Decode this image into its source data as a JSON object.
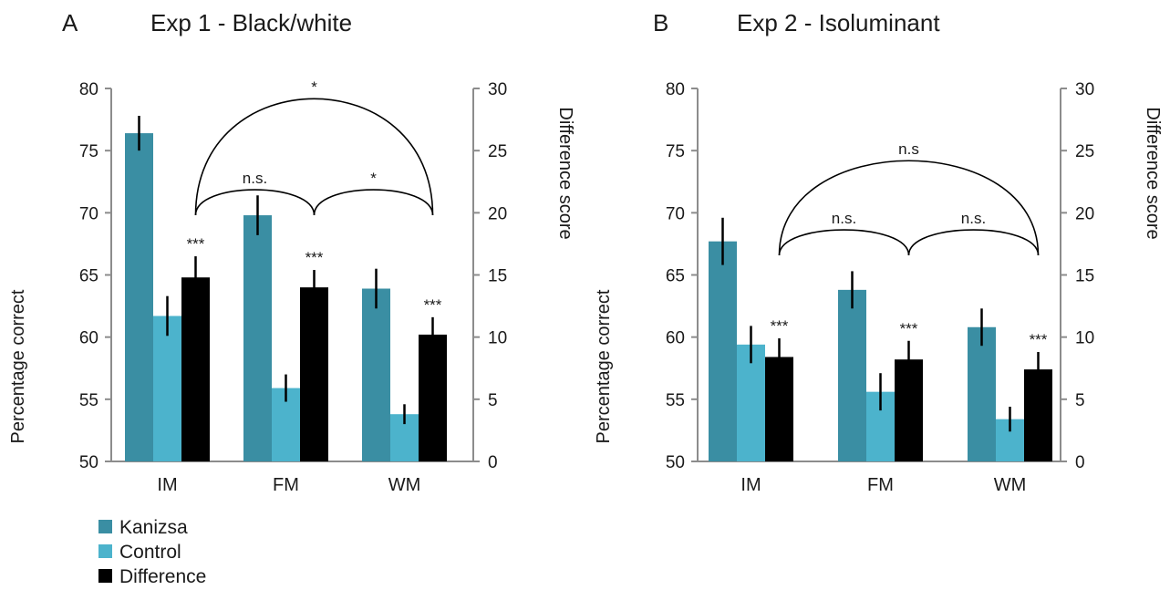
{
  "legend": [
    {
      "label": "Kanizsa",
      "color": "#3a8ea3"
    },
    {
      "label": "Control",
      "color": "#4cb3cc"
    },
    {
      "label": "Difference",
      "color": "#000000"
    }
  ],
  "chart_data": [
    {
      "type": "bar",
      "panel_label": "A",
      "title": "Exp 1 - Black/white",
      "categories": [
        "IM",
        "FM",
        "WM"
      ],
      "ylabel": "Percentage correct",
      "ylim": [
        50,
        80
      ],
      "yticks": [
        "50",
        "55",
        "60",
        "65",
        "70",
        "75",
        "80"
      ],
      "y2label": "Difference score",
      "y2lim": [
        0,
        30
      ],
      "y2ticks": [
        "0",
        "5",
        "10",
        "15",
        "20",
        "25",
        "30"
      ],
      "grid": false,
      "series": [
        {
          "name": "Kanizsa",
          "axis": "left",
          "color": "#3a8ea3",
          "values": [
            76.4,
            69.8,
            63.9
          ],
          "errors": [
            1.4,
            1.6,
            1.6
          ]
        },
        {
          "name": "Control",
          "axis": "left",
          "color": "#4cb3cc",
          "values": [
            61.7,
            55.9,
            53.8
          ],
          "errors": [
            1.6,
            1.1,
            0.8
          ]
        },
        {
          "name": "Difference",
          "axis": "right",
          "color": "#000000",
          "values": [
            14.8,
            14.0,
            10.2
          ],
          "errors": [
            1.7,
            1.4,
            1.4
          ]
        }
      ],
      "significance_marks": [
        "***",
        "***",
        "***"
      ],
      "comparisons": [
        {
          "from": "IM",
          "to": "FM",
          "label": "n.s."
        },
        {
          "from": "FM",
          "to": "WM",
          "label": "*"
        },
        {
          "from": "IM",
          "to": "WM",
          "label": "*"
        }
      ]
    },
    {
      "type": "bar",
      "panel_label": "B",
      "title": "Exp 2 - Isoluminant",
      "categories": [
        "IM",
        "FM",
        "WM"
      ],
      "ylabel": "Percentage correct",
      "ylim": [
        50,
        80
      ],
      "yticks": [
        "50",
        "55",
        "60",
        "65",
        "70",
        "75",
        "80"
      ],
      "y2label": "Difference score",
      "y2lim": [
        0,
        30
      ],
      "y2ticks": [
        "0",
        "5",
        "10",
        "15",
        "20",
        "25",
        "30"
      ],
      "grid": false,
      "series": [
        {
          "name": "Kanizsa",
          "axis": "left",
          "color": "#3a8ea3",
          "values": [
            67.7,
            63.8,
            60.8
          ],
          "errors": [
            1.9,
            1.5,
            1.5
          ]
        },
        {
          "name": "Control",
          "axis": "left",
          "color": "#4cb3cc",
          "values": [
            59.4,
            55.6,
            53.4
          ],
          "errors": [
            1.5,
            1.5,
            1.0
          ]
        },
        {
          "name": "Difference",
          "axis": "right",
          "color": "#000000",
          "values": [
            8.4,
            8.2,
            7.4
          ],
          "errors": [
            1.5,
            1.5,
            1.4
          ]
        }
      ],
      "significance_marks": [
        "***",
        "***",
        "***"
      ],
      "comparisons": [
        {
          "from": "IM",
          "to": "FM",
          "label": "n.s."
        },
        {
          "from": "FM",
          "to": "WM",
          "label": "n.s."
        },
        {
          "from": "IM",
          "to": "WM",
          "label": "n.s"
        }
      ]
    }
  ]
}
